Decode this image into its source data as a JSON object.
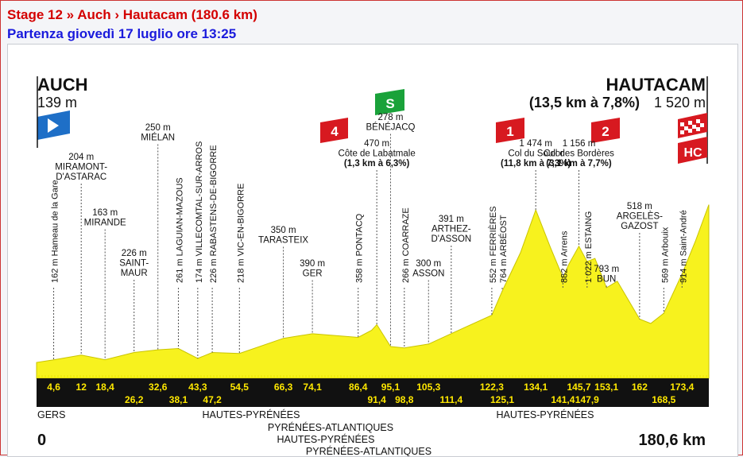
{
  "header": {
    "stage_line": "Stage 12 » Auch › Hautacam (180.6 km)",
    "start_line": "Partenza giovedì 17 luglio ore 13:25"
  },
  "start": {
    "name": "AUCH",
    "alt": "139 m",
    "km": "0"
  },
  "finish": {
    "name": "HAUTACAM",
    "climb": "(13,5 km à 7,8%)",
    "alt": "1 520 m",
    "km": "180,6 km"
  },
  "badges": {
    "cat4": "4",
    "sprint": "S",
    "cat1": "1",
    "cat2": "2",
    "hc": "HC"
  },
  "regions": [
    "GERS",
    "HAUTES-PYRÉNÉES",
    "PYRÉNÉES-ATLANTIQUES",
    "HAUTES-PYRÉNÉES",
    "PYRÉNÉES-ATLANTIQUES",
    "HAUTES-PYRÉNÉES"
  ],
  "colors": {
    "profile_fill": "#f7f21e",
    "axis_band": "#111111",
    "km_text": "#ffe800",
    "cat_red": "#d71920",
    "sprint_green": "#1aa23a",
    "title_red": "#d40000",
    "title_blue": "#1a1adc"
  },
  "chart_data": {
    "type": "area",
    "title": "",
    "xlabel": "",
    "ylabel": "",
    "xlim": [
      0,
      180.6
    ],
    "ylim": [
      0,
      1600
    ],
    "x_ticks_top": [
      "4,6",
      "12",
      "18,4",
      "32,6",
      "43,3",
      "54,5",
      "66,3",
      "74,1",
      "86,4",
      "95,1",
      "105,3",
      "122,3",
      "134,1",
      "145,7",
      "153,1",
      "162",
      "173,4"
    ],
    "x_ticks_bottom": [
      "26,2",
      "38,1",
      "47,2",
      "91,4",
      "98,8",
      "111,4",
      "125,1",
      "141,4",
      "147,9",
      "168,5"
    ],
    "series": [
      {
        "x": [
          0,
          4.6,
          12,
          18.4,
          26.2,
          32.6,
          38.1,
          43.3,
          47.2,
          54.5,
          66.3,
          74.1,
          86.4,
          90,
          91.4,
          95.1,
          98.8,
          105.3,
          111.4,
          116,
          122.3,
          125.1,
          130,
          134.1,
          138,
          141.4,
          143,
          145.7,
          147.9,
          150,
          153.1,
          156,
          162,
          165,
          168.5,
          173.4,
          177,
          180.6
        ],
        "y": [
          139,
          162,
          204,
          163,
          226,
          250,
          261,
          174,
          226,
          218,
          350,
          390,
          358,
          420,
          470,
          278,
          266,
          300,
          391,
          460,
          552,
          764,
          1100,
          1474,
          1150,
          882,
          1000,
          1156,
          1022,
          1050,
          793,
          850,
          518,
          480,
          569,
          914,
          1200,
          1520
        ]
      }
    ],
    "points": [
      {
        "km": "4,6",
        "label": "162 m Hameau de la Gare"
      },
      {
        "km": "12",
        "alt": "204 m",
        "name": "MIRAMONT-\nD'ASTARAC"
      },
      {
        "km": "18,4",
        "alt": "163 m",
        "name": "MIRANDE"
      },
      {
        "km": "26,2",
        "alt": "226 m",
        "name": "SAINT-\nMAUR"
      },
      {
        "km": "32,6",
        "alt": "250 m",
        "name": "MIÉLAN"
      },
      {
        "km": "38,1",
        "label": "261 m LAGUIAN-MAZOUS"
      },
      {
        "km": "43,3",
        "label": "174 m VILLECOMTAL-SUR-ARROS"
      },
      {
        "km": "47,2",
        "label": "226 m RABASTENS-DE-BIGORRE"
      },
      {
        "km": "54,5",
        "label": "218 m VIC-EN-BIGORRE"
      },
      {
        "km": "66,3",
        "alt": "350 m",
        "name": "TARASTEIX"
      },
      {
        "km": "74,1",
        "alt": "390 m",
        "name": "GER"
      },
      {
        "km": "86,4",
        "label": "358 m PONTACQ"
      },
      {
        "km": "91,4",
        "alt": "470 m",
        "name": "Côte de Labatmale",
        "detail": "(1,3 km à 6,3%)"
      },
      {
        "km": "95,1",
        "alt": "278 m",
        "name": "BÉNÉJACQ"
      },
      {
        "km": "98,8",
        "label": "266 m COARRAZE"
      },
      {
        "km": "105,3",
        "alt": "300 m",
        "name": "ASSON"
      },
      {
        "km": "111,4",
        "alt": "391 m",
        "name": "ARTHEZ-\nD'ASSON"
      },
      {
        "km": "122,3",
        "label": "552 m FERRIÈRES"
      },
      {
        "km": "125,1",
        "label": "764 m ARBÉOST"
      },
      {
        "km": "134,1",
        "alt": "1 474 m",
        "name": "Col du Soulor",
        "detail": "(11,8 km à 7,3%)"
      },
      {
        "km": "141,4",
        "label": "882 m Arrens"
      },
      {
        "km": "145,7",
        "alt": "1 156 m",
        "name": "Col des Bordères",
        "detail": "(3,1 km à 7,7%)"
      },
      {
        "km": "147,9",
        "label": "1 022 m ESTAING"
      },
      {
        "km": "153,1",
        "alt": "793 m",
        "name": "BUN"
      },
      {
        "km": "162",
        "alt": "518 m",
        "name": "ARGELÈS-\nGAZOST"
      },
      {
        "km": "168,5",
        "label": "569 m Arbouix"
      },
      {
        "km": "173,4",
        "label": "914 m Saint-André"
      }
    ]
  }
}
